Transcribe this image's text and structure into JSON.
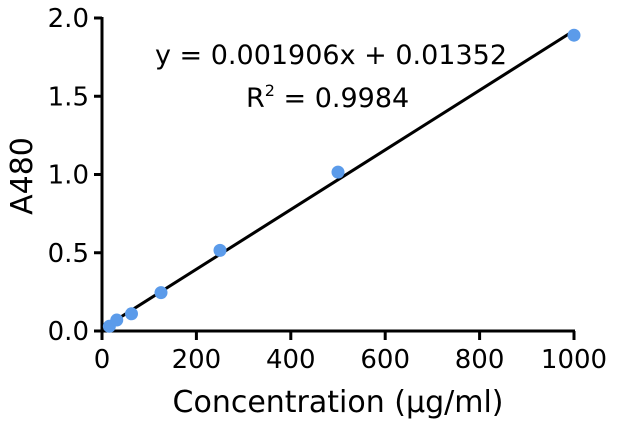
{
  "chart_data": {
    "type": "scatter",
    "xlabel": "Concentration (µg/ml)",
    "ylabel": "A480",
    "xlim": [
      0,
      1000
    ],
    "ylim": [
      0,
      2.0
    ],
    "x_ticks": [
      "0",
      "200",
      "400",
      "600",
      "800",
      "1000"
    ],
    "y_ticks": [
      "0.0",
      "0.5",
      "1.0",
      "1.5",
      "2.0"
    ],
    "grid": false,
    "points": [
      {
        "x": 15.6,
        "y": 0.03
      },
      {
        "x": 31.25,
        "y": 0.07
      },
      {
        "x": 62.5,
        "y": 0.11
      },
      {
        "x": 125,
        "y": 0.245
      },
      {
        "x": 250,
        "y": 0.515
      },
      {
        "x": 500,
        "y": 1.015
      },
      {
        "x": 1000,
        "y": 1.89
      }
    ],
    "fit": {
      "slope": 0.001906,
      "intercept": 0.01352,
      "r2": 0.9984
    },
    "equation_text": "y = 0.001906x + 0.01352",
    "r2_label": "R",
    "r2_sup": "2",
    "r2_value": " = 0.9984",
    "colors": {
      "points": "#5b9bea",
      "line": "#000000",
      "axes": "#000000"
    }
  }
}
